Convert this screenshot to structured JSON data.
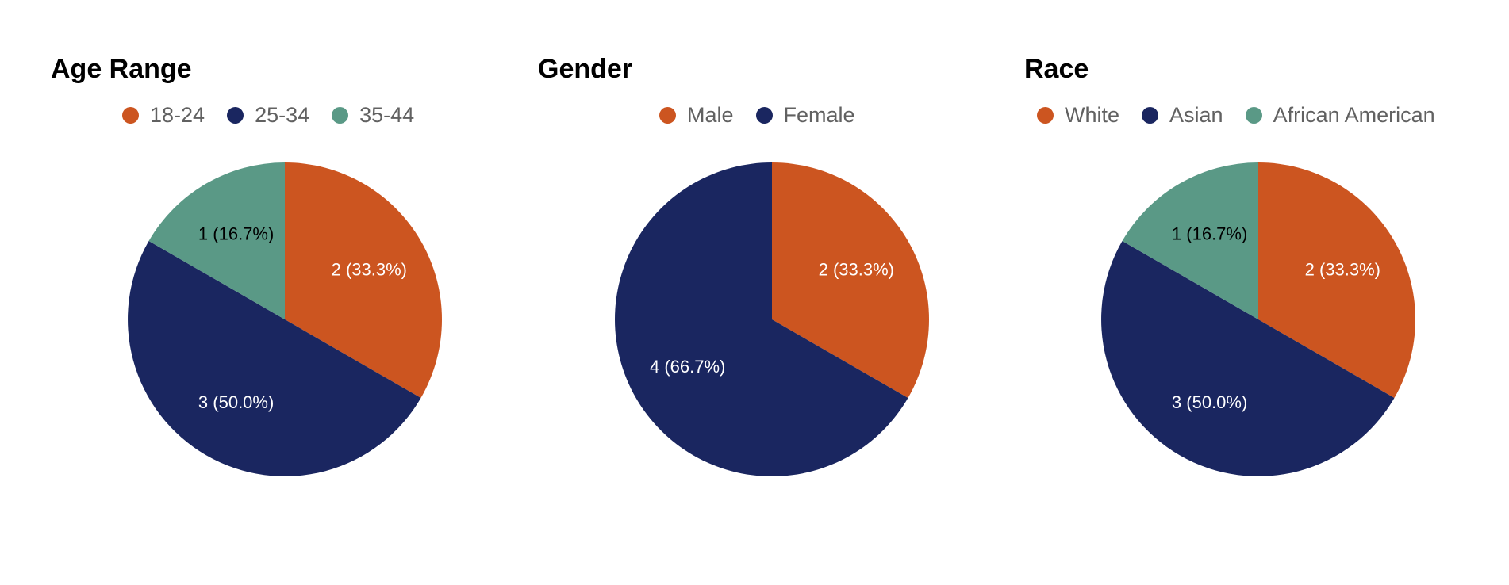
{
  "chart_data": [
    {
      "type": "pie",
      "title": "Age Range",
      "categories": [
        "18-24",
        "25-34",
        "35-44"
      ],
      "values": [
        2,
        3,
        1
      ],
      "labels": [
        "2 (33.3%)",
        "3 (50.0%)",
        "1 (16.7%)"
      ],
      "colors": [
        "#cc5520",
        "#1a2660",
        "#5a9986"
      ],
      "label_colors": [
        "#ffffff",
        "#ffffff",
        "#000000"
      ],
      "legend": "top"
    },
    {
      "type": "pie",
      "title": "Gender",
      "categories": [
        "Male",
        "Female"
      ],
      "values": [
        2,
        4
      ],
      "labels": [
        "2 (33.3%)",
        "4 (66.7%)"
      ],
      "colors": [
        "#cc5520",
        "#1a2660"
      ],
      "label_colors": [
        "#ffffff",
        "#ffffff"
      ],
      "legend": "top"
    },
    {
      "type": "pie",
      "title": "Race",
      "categories": [
        "White",
        "Asian",
        "African American"
      ],
      "values": [
        2,
        3,
        1
      ],
      "labels": [
        "2 (33.3%)",
        "3 (50.0%)",
        "1 (16.7%)"
      ],
      "colors": [
        "#cc5520",
        "#1a2660",
        "#5a9986"
      ],
      "label_colors": [
        "#ffffff",
        "#ffffff",
        "#000000"
      ],
      "legend": "top"
    }
  ]
}
